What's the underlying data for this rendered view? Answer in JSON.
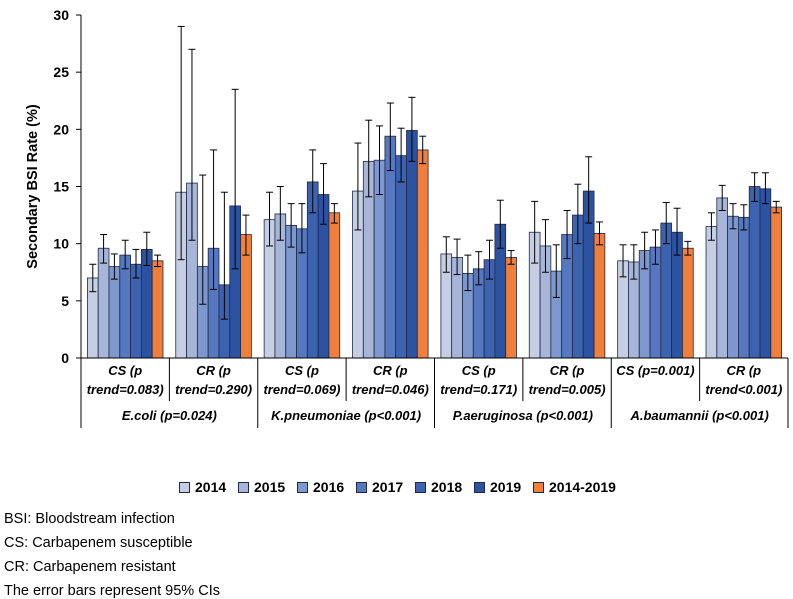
{
  "chart_data": {
    "type": "bar",
    "title": "",
    "ylabel": "Secondary BSI Rate (%)",
    "ylim": [
      0,
      30
    ],
    "yticks": [
      0,
      5,
      10,
      15,
      20,
      25,
      30
    ],
    "grid": false,
    "legend_position": "bottom",
    "categories": [
      {
        "line1": "CS (p",
        "line2": "trend=0.083)"
      },
      {
        "line1": "CR (p",
        "line2": "trend=0.290)"
      },
      {
        "line1": "CS (p",
        "line2": "trend=0.069)"
      },
      {
        "line1": "CR (p",
        "line2": "trend=0.046)"
      },
      {
        "line1": "CS (p",
        "line2": "trend=0.171)"
      },
      {
        "line1": "CR (p",
        "line2": "trend=0.005)"
      },
      {
        "line1": "CS (p=0.001)",
        "line2": ""
      },
      {
        "line1": "CR (p",
        "line2": "trend<0.001)"
      }
    ],
    "groups": [
      "E.coli (p=0.024)",
      "K.pneumoniae (p<0.001)",
      "P.aeruginosa (p<0.001)",
      "A.baumannii (p<0.001)"
    ],
    "series": [
      {
        "name": "2014",
        "color": "#c5cee3",
        "values": [
          7.0,
          14.5,
          12.1,
          14.6,
          9.1,
          11.0,
          8.5,
          11.5
        ],
        "lower": [
          5.8,
          8.6,
          9.8,
          11.2,
          7.5,
          8.3,
          7.1,
          10.3
        ],
        "upper": [
          8.2,
          29.0,
          14.5,
          18.8,
          10.6,
          13.7,
          9.9,
          12.7
        ]
      },
      {
        "name": "2015",
        "color": "#a7b5d9",
        "values": [
          9.6,
          15.3,
          12.6,
          17.2,
          8.8,
          9.8,
          8.4,
          14.0
        ],
        "lower": [
          8.3,
          10.3,
          10.3,
          14.1,
          7.3,
          7.5,
          6.9,
          12.9
        ],
        "upper": [
          10.8,
          27.0,
          15.0,
          20.8,
          10.4,
          12.1,
          9.9,
          15.1
        ]
      },
      {
        "name": "2016",
        "color": "#7e98cf",
        "values": [
          8.0,
          8.0,
          11.6,
          17.3,
          7.4,
          7.6,
          9.4,
          12.4
        ],
        "lower": [
          6.9,
          4.7,
          9.7,
          14.3,
          5.9,
          5.3,
          7.8,
          11.3
        ],
        "upper": [
          9.1,
          16.0,
          13.5,
          20.3,
          9.0,
          9.9,
          11.0,
          13.5
        ]
      },
      {
        "name": "2017",
        "color": "#5578c0",
        "values": [
          9.0,
          9.6,
          11.3,
          19.4,
          7.8,
          10.8,
          9.7,
          12.3
        ],
        "lower": [
          7.8,
          6.0,
          9.2,
          16.4,
          6.4,
          8.7,
          8.2,
          11.2
        ],
        "upper": [
          10.3,
          18.2,
          13.5,
          22.3,
          9.3,
          12.9,
          11.2,
          13.4
        ]
      },
      {
        "name": "2018",
        "color": "#3d63b0",
        "values": [
          8.2,
          6.4,
          15.4,
          17.7,
          8.6,
          12.5,
          11.8,
          15.0
        ],
        "lower": [
          7.0,
          3.4,
          12.7,
          15.4,
          6.9,
          10.0,
          10.0,
          13.7
        ],
        "upper": [
          9.5,
          14.5,
          18.2,
          20.1,
          10.3,
          15.2,
          13.6,
          16.2
        ]
      },
      {
        "name": "2019",
        "color": "#2c53a2",
        "values": [
          9.5,
          13.3,
          14.3,
          19.9,
          11.7,
          14.6,
          11.0,
          14.8
        ],
        "lower": [
          8.1,
          7.8,
          11.7,
          17.2,
          9.6,
          11.8,
          9.0,
          13.5
        ],
        "upper": [
          11.0,
          23.5,
          17.0,
          22.8,
          13.8,
          17.6,
          13.1,
          16.2
        ]
      },
      {
        "name": "2014-2019",
        "color": "#f07f3c",
        "values": [
          8.5,
          10.8,
          12.7,
          18.2,
          8.8,
          10.9,
          9.6,
          13.2
        ],
        "lower": [
          8.0,
          9.0,
          11.8,
          17.0,
          8.2,
          9.9,
          9.0,
          12.7
        ],
        "upper": [
          9.0,
          12.5,
          13.5,
          19.4,
          9.4,
          11.9,
          10.2,
          13.7
        ]
      }
    ]
  },
  "notes": [
    "BSI: Bloodstream infection",
    "CS: Carbapenem susceptible",
    "CR: Carbapenem resistant",
    "The error bars represent 95% CIs"
  ]
}
